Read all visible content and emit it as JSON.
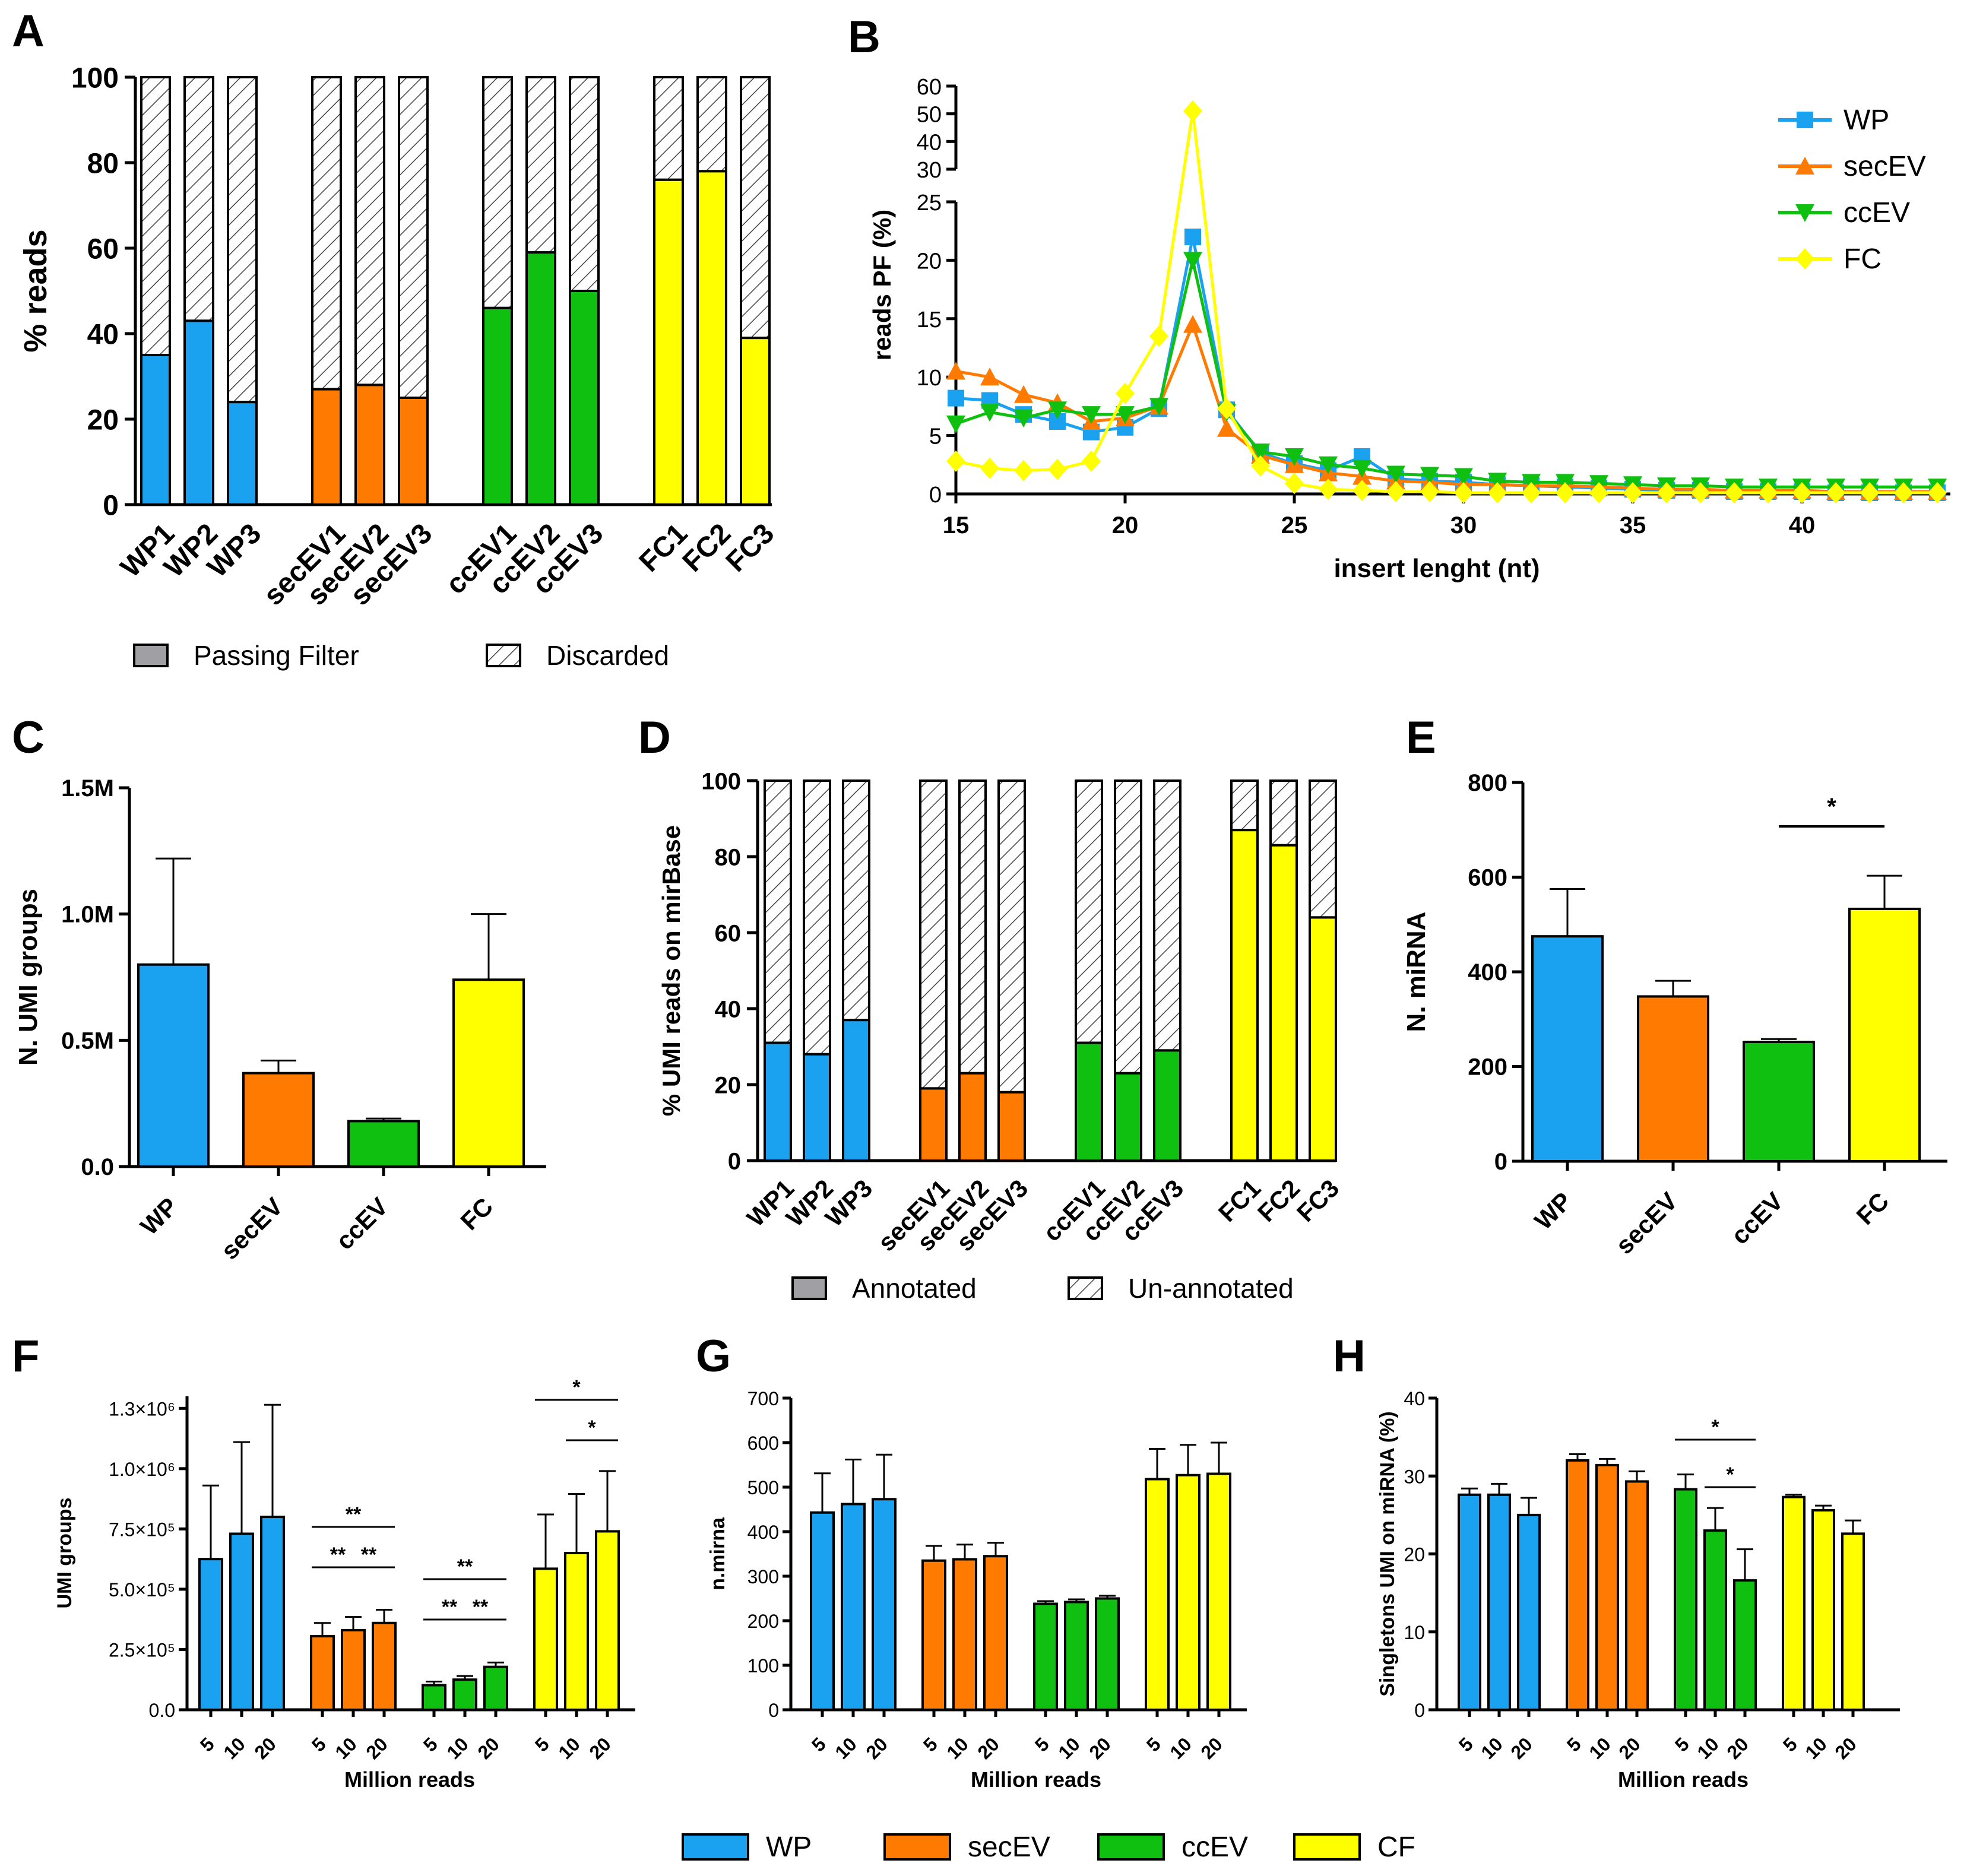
{
  "colors": {
    "WP": "#1aa1f0",
    "secEV": "#ff7a00",
    "ccEV": "#10c010",
    "FC": "#ffff00",
    "CF": "#ffff00",
    "grey": "#a0a0a4"
  },
  "panels": {
    "A": {
      "letter": "A"
    },
    "B": {
      "letter": "B"
    },
    "C": {
      "letter": "C"
    },
    "D": {
      "letter": "D"
    },
    "E": {
      "letter": "E"
    },
    "F": {
      "letter": "F"
    },
    "G": {
      "letter": "G"
    },
    "H": {
      "letter": "H"
    }
  },
  "bottom_legend": [
    {
      "label": "WP",
      "color_key": "WP"
    },
    {
      "label": "secEV",
      "color_key": "secEV"
    },
    {
      "label": "ccEV",
      "color_key": "ccEV"
    },
    {
      "label": "CF",
      "color_key": "CF"
    }
  ],
  "chart_data": [
    {
      "id": "A",
      "type": "bar",
      "stacked": true,
      "ylabel": "% reads",
      "ylim": [
        0,
        100
      ],
      "yticks": [
        "0",
        "20",
        "40",
        "60",
        "80",
        "100"
      ],
      "groups": [
        {
          "name": "WP",
          "categories": [
            "WP1",
            "WP2",
            "WP3"
          ],
          "values": [
            35,
            43,
            24
          ]
        },
        {
          "name": "secEV",
          "categories": [
            "secEV1",
            "secEV2",
            "secEV3"
          ],
          "values": [
            27,
            28,
            25
          ]
        },
        {
          "name": "ccEV",
          "categories": [
            "ccEV1",
            "ccEV2",
            "ccEV3"
          ],
          "values": [
            46,
            59,
            50
          ]
        },
        {
          "name": "FC",
          "categories": [
            "FC1",
            "FC2",
            "FC3"
          ],
          "values": [
            76,
            78,
            39
          ]
        }
      ],
      "legend": [
        "Passing Filter",
        "Discarded"
      ]
    },
    {
      "id": "B",
      "type": "line",
      "xlabel": "insert lenght (nt)",
      "ylabel": "reads PF (%)",
      "xlim": [
        15,
        44
      ],
      "xticks": [
        "15",
        "20",
        "25",
        "30",
        "35",
        "40"
      ],
      "yticks_lower": [
        "0",
        "5",
        "10",
        "15",
        "20",
        "25"
      ],
      "yticks_upper": [
        "30",
        "40",
        "50",
        "60"
      ],
      "x": [
        15,
        16,
        17,
        18,
        19,
        20,
        21,
        22,
        23,
        24,
        25,
        26,
        27,
        28,
        29,
        30,
        31,
        32,
        33,
        34,
        35,
        36,
        37,
        38,
        39,
        40,
        41,
        42,
        43,
        44
      ],
      "series": [
        {
          "name": "WP",
          "marker": "square",
          "values": [
            8.2,
            8.0,
            6.8,
            6.2,
            5.3,
            5.7,
            7.3,
            22.0,
            7.2,
            3.5,
            2.6,
            2.0,
            3.2,
            1.3,
            1.1,
            1.0,
            0.8,
            0.7,
            0.6,
            0.5,
            0.4,
            0.3,
            0.3,
            0.2,
            0.2,
            0.2,
            0.1,
            0.1,
            0.1,
            0.1
          ]
        },
        {
          "name": "secEV",
          "marker": "triangle-up",
          "values": [
            10.5,
            10.0,
            8.5,
            7.8,
            6.2,
            6.5,
            7.5,
            14.5,
            5.6,
            3.3,
            2.5,
            1.8,
            1.5,
            1.1,
            1.0,
            0.8,
            0.8,
            0.7,
            0.7,
            0.6,
            0.5,
            0.4,
            0.4,
            0.3,
            0.3,
            0.3,
            0.2,
            0.2,
            0.2,
            0.2
          ]
        },
        {
          "name": "ccEV",
          "marker": "triangle-down",
          "values": [
            6.0,
            7.0,
            6.5,
            7.2,
            6.8,
            6.8,
            7.5,
            20.0,
            7.0,
            3.6,
            3.2,
            2.5,
            2.2,
            1.7,
            1.6,
            1.5,
            1.1,
            1.0,
            1.0,
            0.9,
            0.8,
            0.7,
            0.7,
            0.6,
            0.6,
            0.6,
            0.6,
            0.6,
            0.6,
            0.6
          ]
        },
        {
          "name": "FC",
          "marker": "diamond",
          "values": [
            2.8,
            2.2,
            2.0,
            2.1,
            2.8,
            8.6,
            13.5,
            51.0,
            7.3,
            2.4,
            0.9,
            0.4,
            0.3,
            0.2,
            0.2,
            0.1,
            0.1,
            0.1,
            0.1,
            0.1,
            0.1,
            0.1,
            0.1,
            0.1,
            0.1,
            0.1,
            0.1,
            0.1,
            0.1,
            0.1
          ]
        }
      ]
    },
    {
      "id": "C",
      "type": "bar",
      "ylabel": "N. UMI groups",
      "ylim": [
        0,
        1.5
      ],
      "yticks": [
        "0.0",
        "0.5M",
        "1.0M",
        "1.5M"
      ],
      "categories": [
        "WP",
        "secEV",
        "ccEV",
        "FC"
      ],
      "values": [
        0.8,
        0.37,
        0.18,
        0.74
      ],
      "errors": [
        0.42,
        0.05,
        0.01,
        0.26
      ]
    },
    {
      "id": "D",
      "type": "bar",
      "stacked": true,
      "ylabel": "% UMI reads on mirBase",
      "ylim": [
        0,
        100
      ],
      "yticks": [
        "0",
        "20",
        "40",
        "60",
        "80",
        "100"
      ],
      "groups": [
        {
          "name": "WP",
          "categories": [
            "WP1",
            "WP2",
            "WP3"
          ],
          "values": [
            31,
            28,
            37
          ]
        },
        {
          "name": "secEV",
          "categories": [
            "secEV1",
            "secEV2",
            "secEV3"
          ],
          "values": [
            19,
            23,
            18
          ]
        },
        {
          "name": "ccEV",
          "categories": [
            "ccEV1",
            "ccEV2",
            "ccEV3"
          ],
          "values": [
            31,
            23,
            29
          ]
        },
        {
          "name": "FC",
          "categories": [
            "FC1",
            "FC2",
            "FC3"
          ],
          "values": [
            87,
            83,
            64
          ]
        }
      ],
      "legend": [
        "Annotated",
        "Un-annotated"
      ]
    },
    {
      "id": "E",
      "type": "bar",
      "ylabel": "N. miRNA",
      "ylim": [
        0,
        800
      ],
      "yticks": [
        "0",
        "200",
        "400",
        "600",
        "800"
      ],
      "categories": [
        "WP",
        "secEV",
        "ccEV",
        "FC"
      ],
      "values": [
        475,
        348,
        252,
        533
      ],
      "errors": [
        100,
        33,
        6,
        70
      ],
      "significance": [
        {
          "from": 2,
          "to": 3,
          "label": "*"
        }
      ]
    },
    {
      "id": "F",
      "type": "bar",
      "xlabel": "Million reads",
      "ylabel": "UMI groups",
      "ylim": [
        0,
        1300000
      ],
      "yticks": [
        "0.0",
        "2.5×10⁵",
        "5.0×10⁵",
        "7.5×10⁵",
        "1.0×10⁶",
        "1.3×10⁶"
      ],
      "subcategories": [
        "5",
        "10",
        "20"
      ],
      "series": [
        {
          "name": "WP",
          "values": [
            625000,
            730000,
            800000
          ],
          "errors": [
            305000,
            380000,
            465000
          ]
        },
        {
          "name": "secEV",
          "values": [
            305000,
            330000,
            360000
          ],
          "errors": [
            55000,
            55000,
            55000
          ]
        },
        {
          "name": "ccEV",
          "values": [
            102000,
            125000,
            178000
          ],
          "errors": [
            15000,
            15000,
            18000
          ]
        },
        {
          "name": "CF",
          "values": [
            585000,
            650000,
            740000
          ],
          "errors": [
            225000,
            245000,
            250000
          ]
        }
      ],
      "significance": [
        {
          "group": 1,
          "from": 0,
          "to": 2,
          "label": "**"
        },
        {
          "group": 1,
          "from": 0,
          "to": 1,
          "label": "**"
        },
        {
          "group": 1,
          "from": 1,
          "to": 2,
          "label": "**"
        },
        {
          "group": 2,
          "from": 0,
          "to": 2,
          "label": "**"
        },
        {
          "group": 2,
          "from": 0,
          "to": 1,
          "label": "**"
        },
        {
          "group": 2,
          "from": 1,
          "to": 2,
          "label": "**"
        },
        {
          "group": 3,
          "from": 0,
          "to": 2,
          "label": "*"
        },
        {
          "group": 3,
          "from": 1,
          "to": 2,
          "label": "*"
        }
      ]
    },
    {
      "id": "G",
      "type": "bar",
      "xlabel": "Million reads",
      "ylabel": "n.mirna",
      "ylim": [
        0,
        700
      ],
      "yticks": [
        "0",
        "100",
        "200",
        "300",
        "400",
        "500",
        "600",
        "700"
      ],
      "subcategories": [
        "5",
        "10",
        "20"
      ],
      "series": [
        {
          "name": "WP",
          "values": [
            443,
            462,
            473
          ],
          "errors": [
            88,
            100,
            100
          ]
        },
        {
          "name": "secEV",
          "values": [
            335,
            338,
            345
          ],
          "errors": [
            33,
            33,
            30
          ]
        },
        {
          "name": "ccEV",
          "values": [
            238,
            242,
            250
          ],
          "errors": [
            6,
            6,
            6
          ]
        },
        {
          "name": "CF",
          "values": [
            518,
            527,
            530
          ],
          "errors": [
            68,
            68,
            70
          ]
        }
      ]
    },
    {
      "id": "H",
      "type": "bar",
      "xlabel": "Million reads",
      "ylabel": "Singletons UMI on miRNA (%)",
      "ylim": [
        0,
        40
      ],
      "yticks": [
        "0",
        "10",
        "20",
        "30",
        "40"
      ],
      "subcategories": [
        "5",
        "10",
        "20"
      ],
      "series": [
        {
          "name": "WP",
          "values": [
            27.6,
            27.6,
            25.0
          ],
          "errors": [
            0.8,
            1.4,
            2.2
          ]
        },
        {
          "name": "secEV",
          "values": [
            32.0,
            31.4,
            29.3
          ],
          "errors": [
            0.8,
            0.8,
            1.3
          ]
        },
        {
          "name": "ccEV",
          "values": [
            28.3,
            23.0,
            16.6
          ],
          "errors": [
            1.9,
            2.9,
            4.0
          ]
        },
        {
          "name": "CF",
          "values": [
            27.3,
            25.6,
            22.6
          ],
          "errors": [
            0.3,
            0.6,
            1.7
          ]
        }
      ],
      "significance": [
        {
          "group": 2,
          "from": 0,
          "to": 2,
          "label": "*"
        },
        {
          "group": 2,
          "from": 1,
          "to": 2,
          "label": "*"
        }
      ]
    }
  ]
}
